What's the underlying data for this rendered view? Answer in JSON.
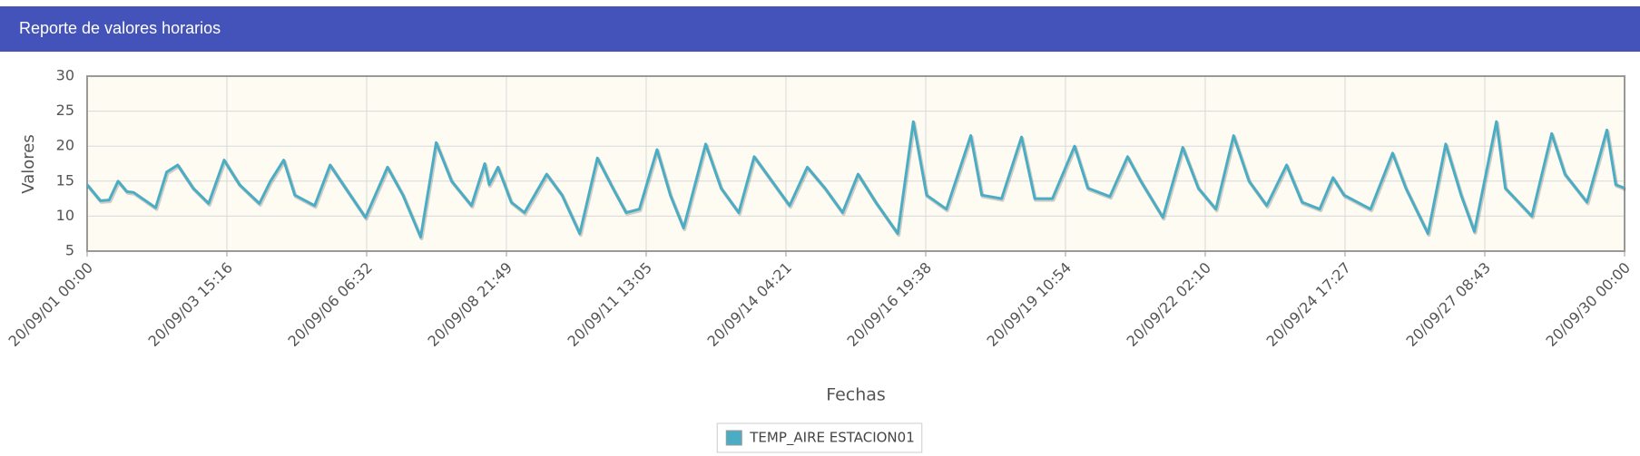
{
  "chart_data": {
    "type": "line",
    "title": "Reporte de valores horarios",
    "x_label": "Fechas",
    "y_label": "Valores",
    "x": [
      "20/09/01 00:00",
      "20/09/01 06:00",
      "20/09/01 10:00",
      "20/09/01 14:00",
      "20/09/01 18:00",
      "20/09/01 21:00",
      "20/09/02 07:00",
      "20/09/02 12:00",
      "20/09/02 17:00",
      "20/09/03 00:00",
      "20/09/03 07:00",
      "20/09/03 14:00",
      "20/09/03 21:00",
      "20/09/04 06:00",
      "20/09/04 11:00",
      "20/09/04 17:00",
      "20/09/04 22:00",
      "20/09/05 07:00",
      "20/09/05 14:00",
      "20/09/05 21:00",
      "20/09/06 06:00",
      "20/09/06 16:00",
      "20/09/06 23:00",
      "20/09/07 07:00",
      "20/09/07 14:00",
      "20/09/07 21:00",
      "20/09/08 06:00",
      "20/09/08 12:00",
      "20/09/08 14:00",
      "20/09/08 18:00",
      "20/09/09 00:00",
      "20/09/09 06:00",
      "20/09/09 16:00",
      "20/09/09 23:00",
      "20/09/10 07:00",
      "20/09/10 15:00",
      "20/09/10 22:00",
      "20/09/11 04:00",
      "20/09/11 10:00",
      "20/09/11 18:00",
      "20/09/12 00:00",
      "20/09/12 06:00",
      "20/09/12 16:00",
      "20/09/12 23:00",
      "20/09/13 07:00",
      "20/09/13 14:00",
      "20/09/13 22:00",
      "20/09/14 06:00",
      "20/09/14 14:00",
      "20/09/14 22:00",
      "20/09/15 06:00",
      "20/09/15 13:00",
      "20/09/15 21:00",
      "20/09/16 07:00",
      "20/09/16 14:00",
      "20/09/16 20:00",
      "20/09/17 05:00",
      "20/09/17 16:00",
      "20/09/17 21:00",
      "20/09/18 06:00",
      "20/09/18 15:00",
      "20/09/18 21:00",
      "20/09/19 05:00",
      "20/09/19 15:00",
      "20/09/19 21:00",
      "20/09/20 07:00",
      "20/09/20 15:00",
      "20/09/20 21:00",
      "20/09/21 07:00",
      "20/09/21 16:00",
      "20/09/21 23:00",
      "20/09/22 07:00",
      "20/09/22 15:00",
      "20/09/22 22:00",
      "20/09/23 06:00",
      "20/09/23 15:00",
      "20/09/23 22:00",
      "20/09/24 06:00",
      "20/09/24 12:00",
      "20/09/24 17:00",
      "20/09/25 05:00",
      "20/09/25 15:00",
      "20/09/25 21:00",
      "20/09/26 07:00",
      "20/09/26 15:00",
      "20/09/26 22:00",
      "20/09/27 04:00",
      "20/09/27 14:00",
      "20/09/27 18:00",
      "20/09/28 06:00",
      "20/09/28 15:00",
      "20/09/28 21:00",
      "20/09/29 07:00",
      "20/09/29 16:00",
      "20/09/29 20:00",
      "20/09/30 00:00"
    ],
    "series": [
      {
        "name": "TEMP_AIRE ESTACION01",
        "color": "#4badc3",
        "values": [
          14.5,
          12.2,
          12.3,
          15,
          13.5,
          13.4,
          11.2,
          16.3,
          17.3,
          14,
          11.8,
          18,
          14.5,
          11.8,
          15,
          18,
          13,
          11.5,
          17.3,
          14,
          9.8,
          17,
          13,
          7,
          20.5,
          15,
          11.5,
          17.5,
          14.5,
          17,
          12,
          10.5,
          16,
          13,
          7.5,
          18.3,
          14,
          10.5,
          11,
          19.5,
          13,
          8.3,
          20.3,
          14,
          10.5,
          18.5,
          15,
          11.5,
          17,
          14,
          10.5,
          16,
          12,
          7.5,
          23.5,
          13,
          11,
          21.5,
          13,
          12.5,
          21.3,
          12.5,
          12.5,
          20,
          14,
          12.8,
          18.5,
          15,
          9.8,
          19.8,
          14,
          11,
          21.5,
          15,
          11.5,
          17.3,
          12,
          11,
          15.5,
          13,
          11,
          19,
          14,
          7.5,
          20.3,
          13,
          7.8,
          23.5,
          14,
          10,
          21.8,
          16,
          12,
          22.3,
          14.5,
          14
        ]
      }
    ],
    "xlim": [
      "20/09/01 00:00",
      "20/09/30 00:00"
    ],
    "xticks": [
      "20/09/01 00:00",
      "20/09/03 15:16",
      "20/09/06 06:32",
      "20/09/08 21:49",
      "20/09/11 13:05",
      "20/09/14 04:21",
      "20/09/16 19:38",
      "20/09/19 10:54",
      "20/09/22 02:10",
      "20/09/24 17:27",
      "20/09/27 08:43",
      "20/09/30 00:00"
    ],
    "ylim": [
      5,
      30
    ],
    "yticks": [
      5,
      10,
      15,
      20,
      25,
      30
    ],
    "grid": true,
    "legend": "bottom"
  }
}
